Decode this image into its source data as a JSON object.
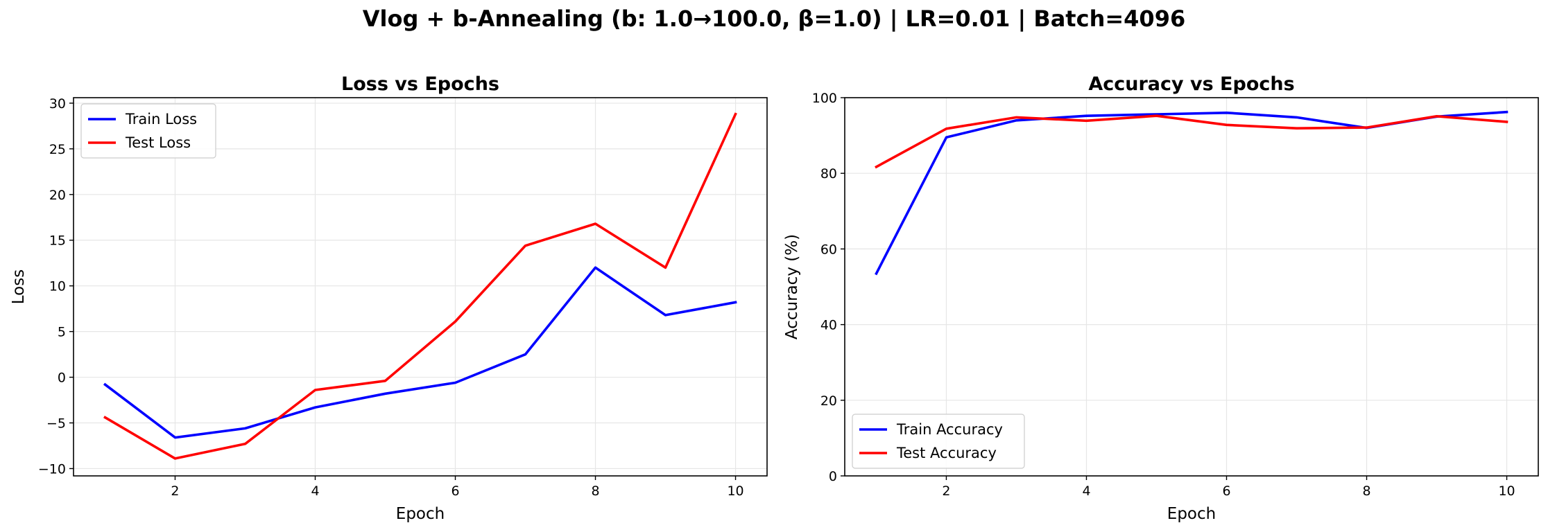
{
  "suptitle": "Vlog + b-Annealing (b: 1.0→100.0, β=1.0) | LR=0.01 | Batch=4096",
  "colors": {
    "train": "#0000ff",
    "test": "#ff0000",
    "grid": "#e6e6e6"
  },
  "chart_data": [
    {
      "type": "line",
      "title": "Loss vs Epochs",
      "xlabel": "Epoch",
      "ylabel": "Loss",
      "xlim": [
        0.55,
        10.45
      ],
      "ylim": [
        -10.8,
        30.6
      ],
      "xticks": [
        2,
        4,
        6,
        8,
        10
      ],
      "yticks": [
        -10,
        -5,
        0,
        5,
        10,
        15,
        20,
        25,
        30
      ],
      "grid": true,
      "legend": "upper left",
      "x": [
        1,
        2,
        3,
        4,
        5,
        6,
        7,
        8,
        9,
        10
      ],
      "series": [
        {
          "name": "Train Loss",
          "color": "#0000ff",
          "values": [
            -0.8,
            -6.6,
            -5.6,
            -3.3,
            -1.8,
            -0.6,
            2.5,
            12.0,
            6.8,
            8.2
          ]
        },
        {
          "name": "Test Loss",
          "color": "#ff0000",
          "values": [
            -4.4,
            -8.9,
            -7.3,
            -1.4,
            -0.4,
            6.1,
            14.4,
            16.8,
            12.0,
            28.8
          ]
        }
      ]
    },
    {
      "type": "line",
      "title": "Accuracy vs Epochs",
      "xlabel": "Epoch",
      "ylabel": "Accuracy (%)",
      "xlim": [
        0.55,
        10.45
      ],
      "ylim": [
        0,
        100
      ],
      "xticks": [
        2,
        4,
        6,
        8,
        10
      ],
      "yticks": [
        0,
        20,
        40,
        60,
        80,
        100
      ],
      "grid": true,
      "legend": "lower left",
      "x": [
        1,
        2,
        3,
        4,
        5,
        6,
        7,
        8,
        9,
        10
      ],
      "series": [
        {
          "name": "Train Accuracy",
          "color": "#0000ff",
          "values": [
            53.5,
            89.5,
            94.0,
            95.2,
            95.6,
            96.0,
            94.8,
            92.0,
            95.0,
            96.2
          ]
        },
        {
          "name": "Test Accuracy",
          "color": "#ff0000",
          "values": [
            81.7,
            91.8,
            94.8,
            93.9,
            95.2,
            92.8,
            91.9,
            92.1,
            95.1,
            93.6
          ]
        }
      ]
    }
  ]
}
